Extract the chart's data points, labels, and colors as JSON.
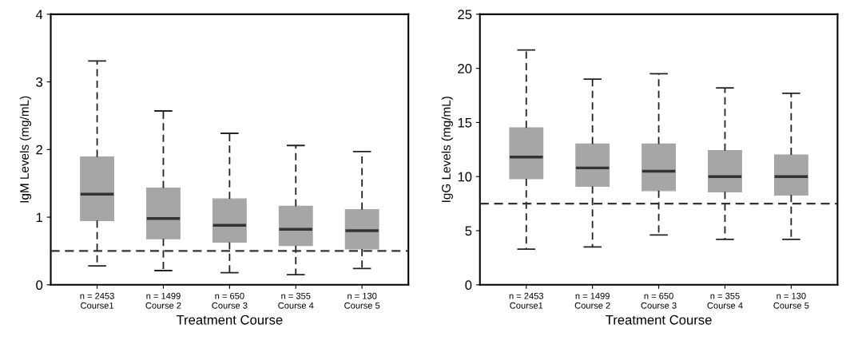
{
  "chart_data": [
    {
      "type": "box",
      "categories": [
        "n = 2453\nCourse1",
        "n = 1499\nCourse 2",
        "n = 650\nCourse 3",
        "n = 355\nCourse 4",
        "n = 130\nCourse 5"
      ],
      "xlabel": "Treatment Course",
      "ylabel": "IgM Levels (mg/mL)",
      "color": "#a6a6a6",
      "line_style": "dashed",
      "ylim": [
        0,
        4
      ],
      "yticks": [
        0,
        1,
        2,
        3,
        4
      ],
      "boxes": [
        {
          "low": 0.28,
          "q1": 0.95,
          "median": 1.34,
          "q3": 1.89,
          "high": 3.31
        },
        {
          "low": 0.21,
          "q1": 0.68,
          "median": 0.98,
          "q3": 1.43,
          "high": 2.57
        },
        {
          "low": 0.18,
          "q1": 0.63,
          "median": 0.88,
          "q3": 1.27,
          "high": 2.24
        },
        {
          "low": 0.15,
          "q1": 0.58,
          "median": 0.82,
          "q3": 1.16,
          "high": 2.06
        },
        {
          "low": 0.24,
          "q1": 0.53,
          "median": 0.8,
          "q3": 1.11,
          "high": 1.97
        }
      ],
      "ref_lines": [
        {
          "axis": "y",
          "value": 0.5,
          "line_style": "dashed",
          "color": "#333333"
        }
      ]
    },
    {
      "type": "box",
      "categories": [
        "n = 2453\nCourse1",
        "n = 1499\nCourse 2",
        "n = 650\nCourse 3",
        "n = 355\nCourse 4",
        "n = 130\nCourse 5"
      ],
      "xlabel": "Treatment Course",
      "ylabel": "IgG Levels (mg/mL)",
      "color": "#a6a6a6",
      "line_style": "dashed",
      "ylim": [
        0,
        25
      ],
      "yticks": [
        0,
        5,
        10,
        15,
        20,
        25
      ],
      "boxes": [
        {
          "low": 3.3,
          "q1": 9.8,
          "median": 11.8,
          "q3": 14.5,
          "high": 21.7
        },
        {
          "low": 3.5,
          "q1": 9.1,
          "median": 10.8,
          "q3": 13.0,
          "high": 19.0
        },
        {
          "low": 4.6,
          "q1": 8.7,
          "median": 10.5,
          "q3": 13.0,
          "high": 19.5
        },
        {
          "low": 4.2,
          "q1": 8.6,
          "median": 10.0,
          "q3": 12.4,
          "high": 18.2
        },
        {
          "low": 4.2,
          "q1": 8.3,
          "median": 10.0,
          "q3": 12.0,
          "high": 17.7
        }
      ],
      "ref_lines": [
        {
          "axis": "y",
          "value": 7.5,
          "line_style": "dashed",
          "color": "#333333"
        }
      ]
    }
  ]
}
